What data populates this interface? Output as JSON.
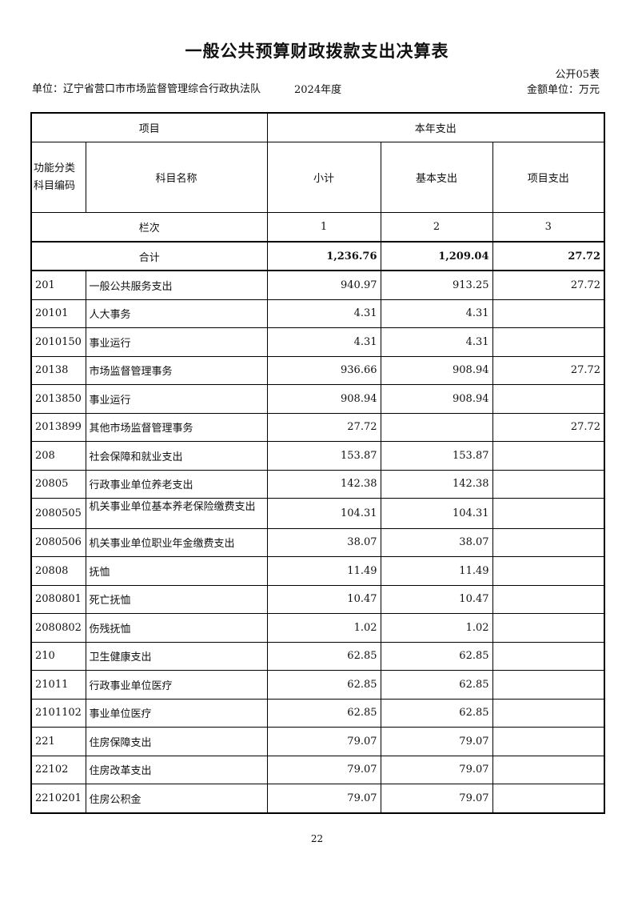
{
  "title": "一般公共预算财政拨款支出决算表",
  "form_no": "公开05表",
  "unit": "单位：辽宁省营口市市场监督管理综合行政执法队",
  "year": "2024年度",
  "money_unit": "金额单位：万元",
  "headers": {
    "item": "项目",
    "current_year": "本年支出",
    "code": "功能分类科目编码",
    "name": "科目名称",
    "subtotal": "小计",
    "basic": "基本支出",
    "project": "项目支出",
    "col_index_label": "栏次",
    "col1": "1",
    "col2": "2",
    "col3": "3"
  },
  "total": {
    "label": "合计",
    "subtotal": "1,236.76",
    "basic": "1,209.04",
    "project": "27.72"
  },
  "rows": [
    {
      "code": "201",
      "name": "一般公共服务支出",
      "subtotal": "940.97",
      "basic": "913.25",
      "project": "27.72"
    },
    {
      "code": "20101",
      "name": "人大事务",
      "subtotal": "4.31",
      "basic": "4.31",
      "project": ""
    },
    {
      "code": "2010150",
      "name": "事业运行",
      "subtotal": "4.31",
      "basic": "4.31",
      "project": ""
    },
    {
      "code": "20138",
      "name": "市场监督管理事务",
      "subtotal": "936.66",
      "basic": "908.94",
      "project": "27.72"
    },
    {
      "code": "2013850",
      "name": "事业运行",
      "subtotal": "908.94",
      "basic": "908.94",
      "project": ""
    },
    {
      "code": "2013899",
      "name": "其他市场监督管理事务",
      "subtotal": "27.72",
      "basic": "",
      "project": "27.72"
    },
    {
      "code": "208",
      "name": "社会保障和就业支出",
      "subtotal": "153.87",
      "basic": "153.87",
      "project": ""
    },
    {
      "code": "20805",
      "name": "行政事业单位养老支出",
      "subtotal": "142.38",
      "basic": "142.38",
      "project": ""
    },
    {
      "code": "2080505",
      "name": "机关事业单位基本养老保险缴费支出",
      "subtotal": "104.31",
      "basic": "104.31",
      "project": ""
    },
    {
      "code": "2080506",
      "name": "机关事业单位职业年金缴费支出",
      "subtotal": "38.07",
      "basic": "38.07",
      "project": ""
    },
    {
      "code": "20808",
      "name": "抚恤",
      "subtotal": "11.49",
      "basic": "11.49",
      "project": ""
    },
    {
      "code": "2080801",
      "name": "死亡抚恤",
      "subtotal": "10.47",
      "basic": "10.47",
      "project": ""
    },
    {
      "code": "2080802",
      "name": "伤残抚恤",
      "subtotal": "1.02",
      "basic": "1.02",
      "project": ""
    },
    {
      "code": "210",
      "name": "卫生健康支出",
      "subtotal": "62.85",
      "basic": "62.85",
      "project": ""
    },
    {
      "code": "21011",
      "name": "行政事业单位医疗",
      "subtotal": "62.85",
      "basic": "62.85",
      "project": ""
    },
    {
      "code": "2101102",
      "name": "事业单位医疗",
      "subtotal": "62.85",
      "basic": "62.85",
      "project": ""
    },
    {
      "code": "221",
      "name": "住房保障支出",
      "subtotal": "79.07",
      "basic": "79.07",
      "project": ""
    },
    {
      "code": "22102",
      "name": "住房改革支出",
      "subtotal": "79.07",
      "basic": "79.07",
      "project": ""
    },
    {
      "code": "2210201",
      "name": "住房公积金",
      "subtotal": "79.07",
      "basic": "79.07",
      "project": ""
    }
  ],
  "page_number": "22"
}
